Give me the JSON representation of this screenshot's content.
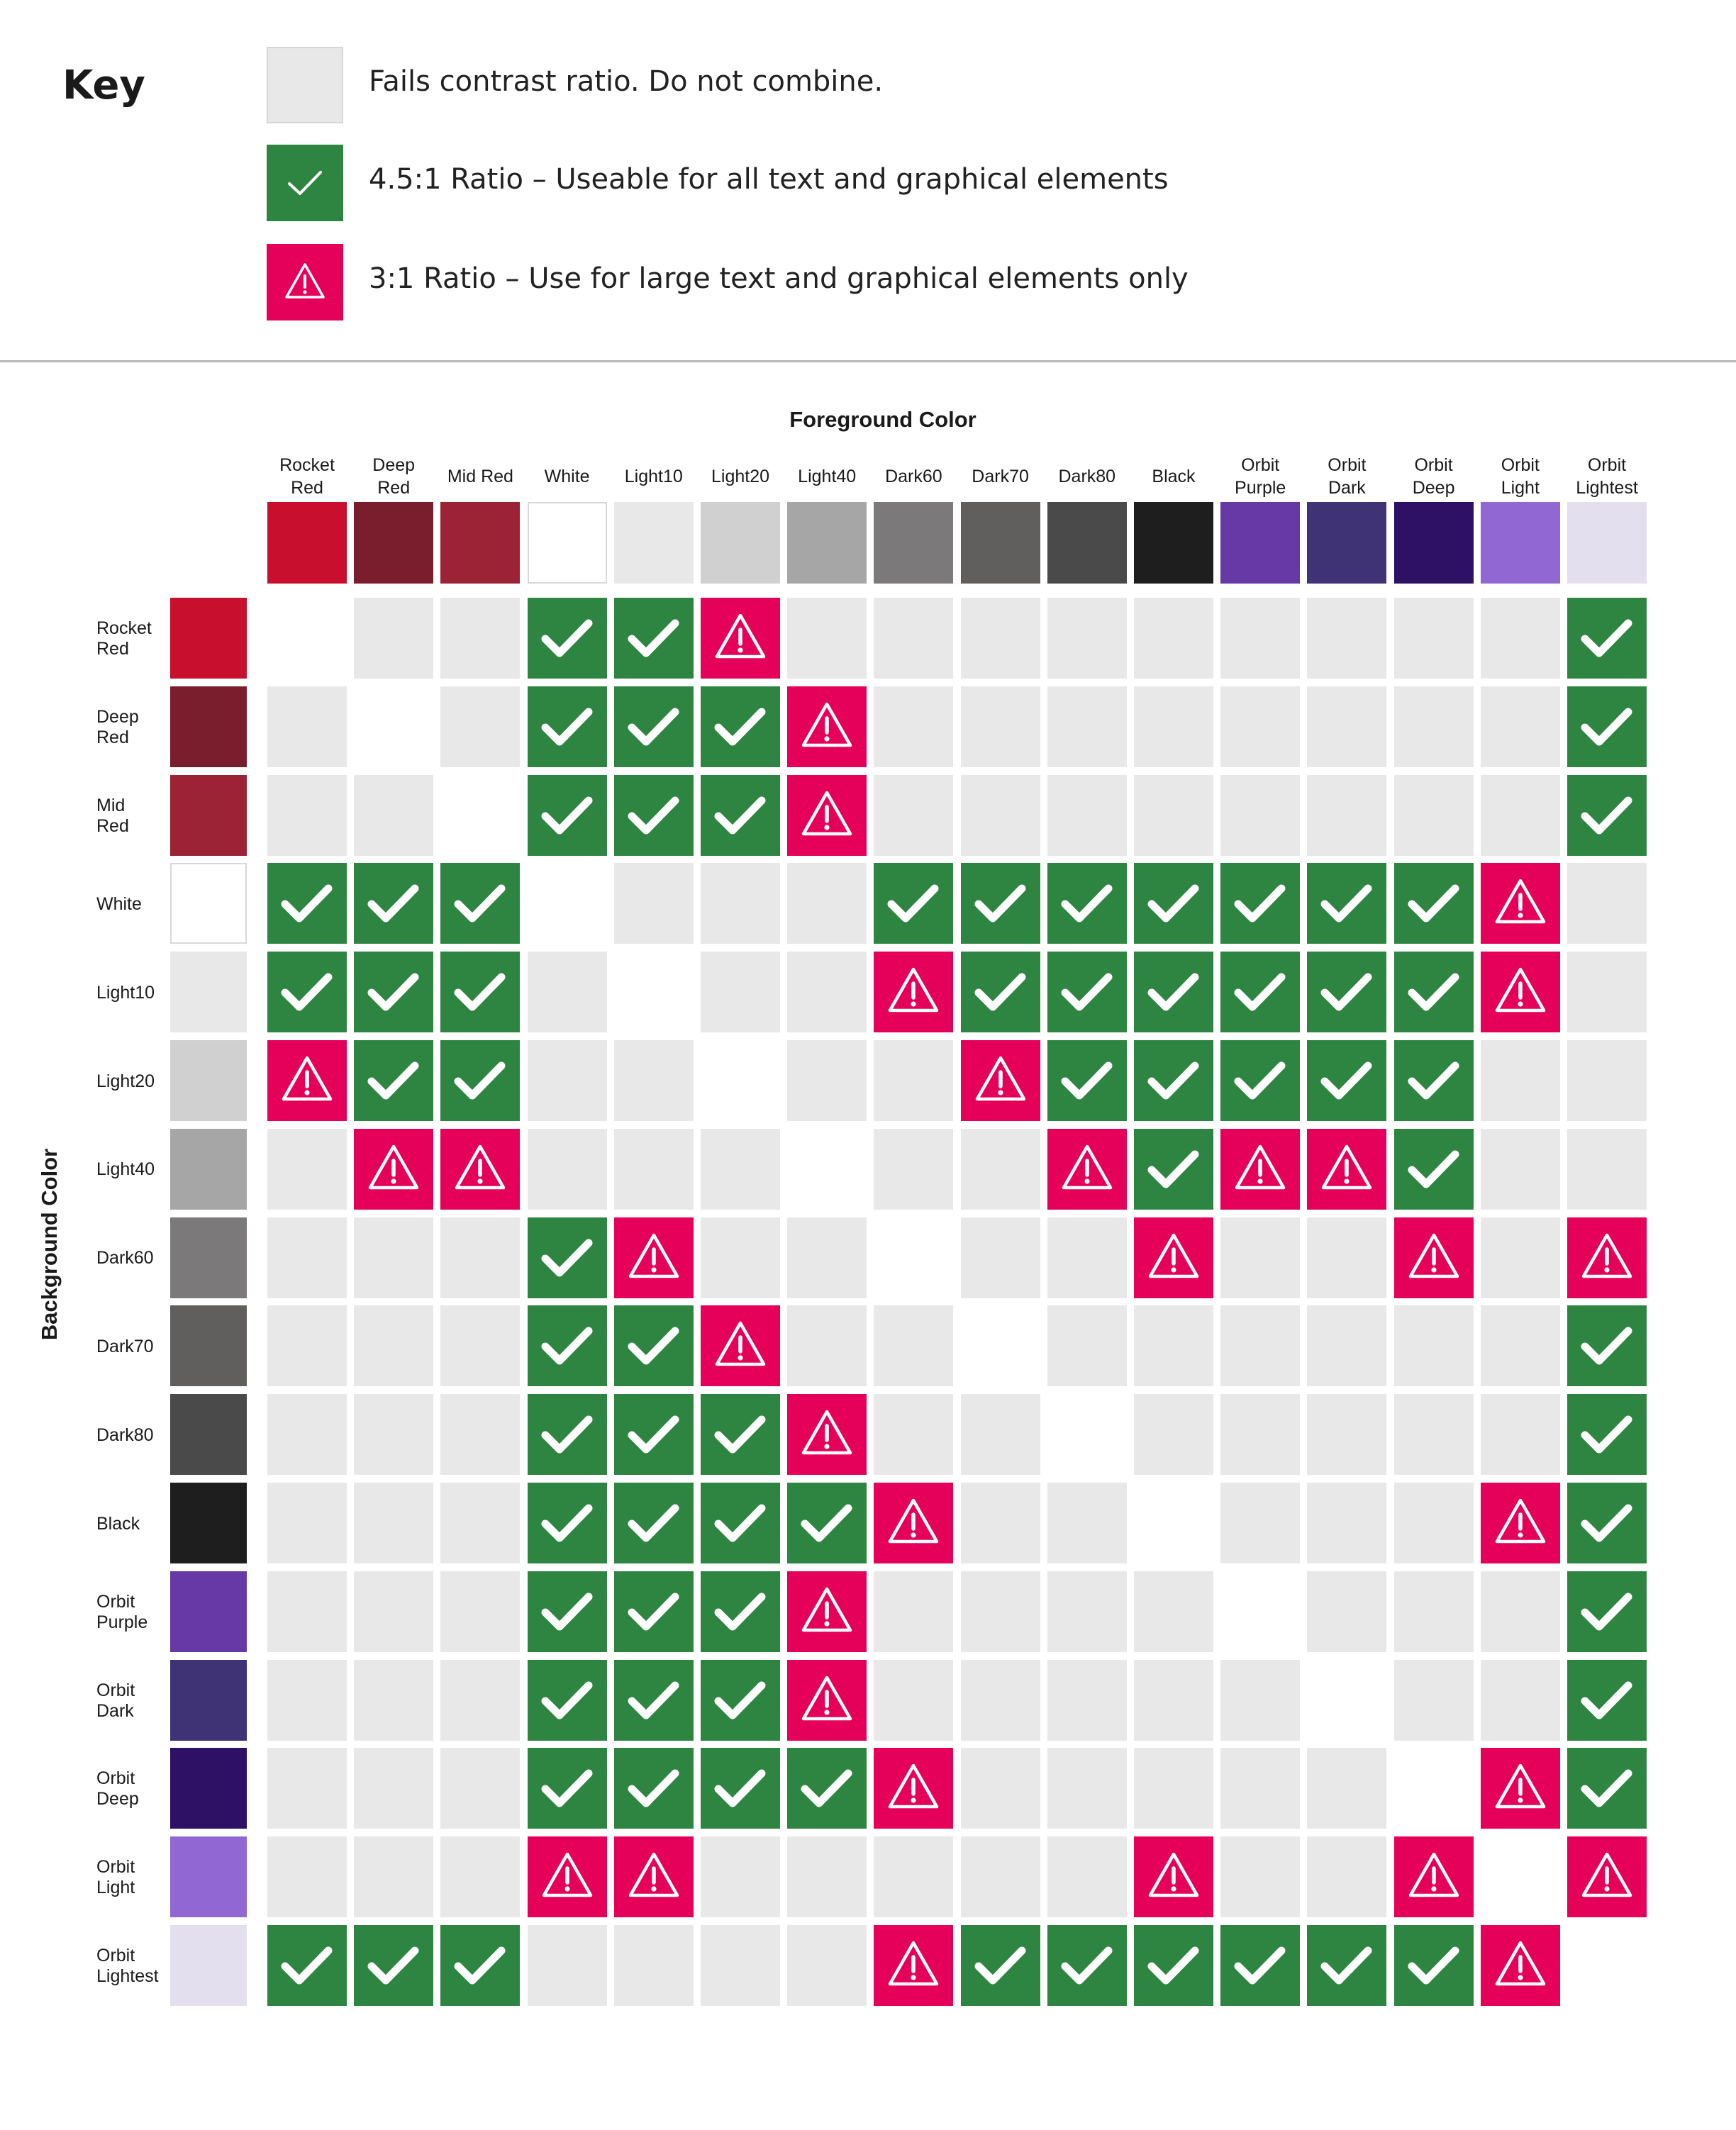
{
  "key": {
    "title": "Key",
    "items": [
      {
        "status": "fail",
        "label": "Fails contrast ratio. Do not combine."
      },
      {
        "status": "pass",
        "label": "4.5:1 Ratio – Useable for all text and graphical elements",
        "icon": "check-icon"
      },
      {
        "status": "warn",
        "label": "3:1 Ratio – Use for large text and graphical elements only",
        "icon": "warning-icon"
      }
    ]
  },
  "status_colors": {
    "fail": "#e8e8e9",
    "pass": "#2e8541",
    "warn": "#e5005a"
  },
  "matrix": {
    "foreground_title": "Foreground Color",
    "background_title": "Background Color",
    "colors": [
      {
        "name": "Rocket\nRed",
        "hex": "#c8102e"
      },
      {
        "name": "Deep\nRed",
        "hex": "#7a1e2e"
      },
      {
        "name": "Mid Red",
        "hex": "#9b2335"
      },
      {
        "name": "White",
        "hex": "#ffffff"
      },
      {
        "name": "Light10",
        "hex": "#e8e8e9"
      },
      {
        "name": "Light20",
        "hex": "#d1d0d1"
      },
      {
        "name": "Light40",
        "hex": "#a6a6a6"
      },
      {
        "name": "Dark60",
        "hex": "#7b797a"
      },
      {
        "name": "Dark70",
        "hex": "#605f5e"
      },
      {
        "name": "Dark80",
        "hex": "#4a4a4b"
      },
      {
        "name": "Black",
        "hex": "#1e1e1e"
      },
      {
        "name": "Orbit\nPurple",
        "hex": "#6639a6"
      },
      {
        "name": "Orbit\nDark",
        "hex": "#3f3275"
      },
      {
        "name": "Orbit\nDeep",
        "hex": "#2e1065"
      },
      {
        "name": "Orbit\nLight",
        "hex": "#9167d4"
      },
      {
        "name": "Orbit\nLightest",
        "hex": "#e3dfef"
      }
    ],
    "row_labels": [
      "Rocket\nRed",
      "Deep\nRed",
      "Mid\nRed",
      "White",
      "Light10",
      "Light20",
      "Light40",
      "Dark60",
      "Dark70",
      "Dark80",
      "Black",
      "Orbit\nPurple",
      "Orbit\nDark",
      "Orbit\nDeep",
      "Orbit\nLight",
      "Orbit\nLightest"
    ],
    "grid": [
      "-FFPPWFFFFFFFFFP",
      "F-FPPPWFFFFFFFFP",
      "FF-PPPWFFFFFFFFP",
      "PPP-FFFPPPPPPPWF",
      "PPPF-FFWPPPPPPWF",
      "WPPFF-FFWPPPPPFF",
      "FWWFFF-FFWPWWPFF",
      "FFFPWFF-FFWFFWFW",
      "FFFPPWFF-FFFFFFP",
      "FFFPPPWFF-FFFFFP",
      "FFFPPPPWFF-FFFWP",
      "FFFPPPWFFFF-FFFP",
      "FFFPPPWFFFFF-FFP",
      "FFFPPPPWFFFFF-WP",
      "FFFWWFFFFFWFFW-W",
      "PPPFFFFWPPPPPPW-"
    ],
    "legend": {
      "-": "same color",
      "F": "fail",
      "P": "pass",
      "W": "warn"
    }
  }
}
